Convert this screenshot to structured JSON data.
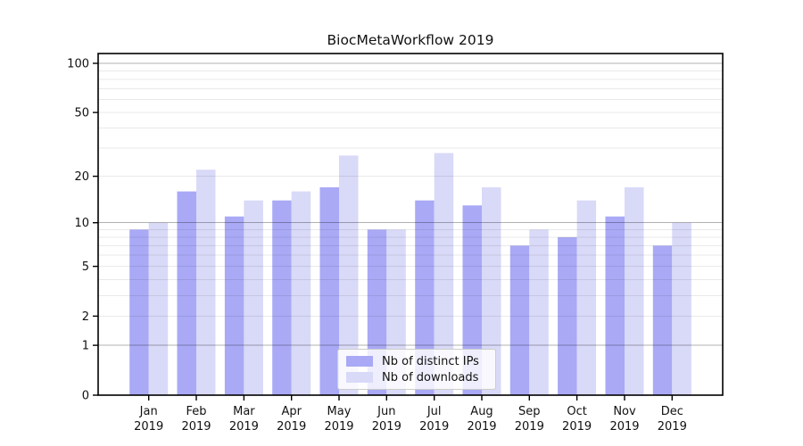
{
  "title": "BiocMetaWorkflow 2019",
  "chart_data": {
    "type": "bar",
    "title": "BiocMetaWorkflow 2019",
    "categories": [
      "Jan",
      "Feb",
      "Mar",
      "Apr",
      "May",
      "Jun",
      "Jul",
      "Aug",
      "Sep",
      "Oct",
      "Nov",
      "Dec"
    ],
    "category_year": "2019",
    "series": [
      {
        "name": "Nb of distinct IPs",
        "color": "#a9a9f6",
        "values": [
          9,
          16,
          11,
          14,
          17,
          9,
          14,
          13,
          7,
          8,
          11,
          7
        ]
      },
      {
        "name": "Nb of downloads",
        "color": "#d9d9f8",
        "values": [
          10,
          22,
          14,
          16,
          27,
          9,
          28,
          17,
          9,
          14,
          17,
          10
        ]
      }
    ],
    "xlabel": "",
    "ylabel": "",
    "yscale": "log1p",
    "ylim": [
      0,
      115
    ],
    "yticks": [
      0,
      1,
      2,
      5,
      10,
      20,
      50,
      100
    ],
    "grid": {
      "on": true,
      "major_lines": [
        1,
        10,
        100
      ],
      "minor_lines": [
        2,
        3,
        4,
        5,
        6,
        7,
        8,
        9,
        20,
        30,
        40,
        50,
        60,
        70,
        80,
        90
      ],
      "major_color": "#b3b3b3",
      "minor_color": "#e9e9e9"
    },
    "legend_position": "lower-center",
    "axis_color": "#000000",
    "background": "#ffffff"
  }
}
